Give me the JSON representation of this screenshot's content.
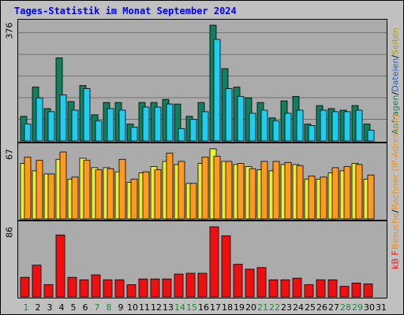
{
  "title": "Tages-Statistik im Monat September 2024",
  "colors": {
    "frame_bg": "#c0c0c0",
    "panel_bg": "#ababab",
    "gridline": "#6f6f6f",
    "title": "#0000ff",
    "weekend_day": "#1f8a3a",
    "weekday_day": "#000000",
    "hits": "#0f7f5f",
    "files": "#22ccee",
    "pages": "#eeee30",
    "visits": "#ff9a20",
    "kb": "#ee1010"
  },
  "right_labels": {
    "panel1": [
      {
        "text": "Anfragen",
        "color": "#0f7f5f"
      },
      {
        "text": "/",
        "color": "#000000"
      },
      {
        "text": "Dateien",
        "color": "#1a5fd6"
      },
      {
        "text": "/",
        "color": "#000000"
      },
      {
        "text": "Seiten",
        "color": "#b0a000"
      }
    ],
    "panel2": [
      {
        "text": "Besuche",
        "color": "#ff8c00"
      },
      {
        "text": "/",
        "color": "#000000"
      },
      {
        "text": "Rechner (IP-Adressen)",
        "color": "#ff8c00"
      }
    ],
    "panel3": [
      {
        "text": "kB F",
        "color": "#ee1010"
      }
    ]
  },
  "chart_data": [
    {
      "type": "bar",
      "panel": "hits-files",
      "y_max_label": "376",
      "ylim": [
        0,
        376
      ],
      "categories": [
        "1",
        "2",
        "3",
        "4",
        "5",
        "6",
        "7",
        "8",
        "9",
        "10",
        "11",
        "12",
        "13",
        "14",
        "15",
        "16",
        "17",
        "18",
        "19",
        "20",
        "21",
        "22",
        "23",
        "24",
        "25",
        "26",
        "27",
        "28",
        "29",
        "30",
        "31"
      ],
      "series": [
        {
          "name": "Anfragen",
          "values": [
            80,
            175,
            105,
            270,
            128,
            180,
            85,
            125,
            125,
            55,
            125,
            125,
            135,
            120,
            80,
            125,
            376,
            235,
            175,
            140,
            125,
            75,
            130,
            145,
            55,
            115,
            105,
            100,
            115,
            55,
            0
          ]
        },
        {
          "name": "Dateien",
          "values": [
            55,
            140,
            95,
            150,
            100,
            170,
            65,
            105,
            100,
            45,
            110,
            110,
            120,
            40,
            70,
            95,
            330,
            170,
            145,
            90,
            100,
            65,
            90,
            100,
            50,
            100,
            95,
            95,
            100,
            35,
            0
          ]
        }
      ]
    },
    {
      "type": "bar",
      "panel": "visits-sites",
      "y_max_label": "67",
      "ylim": [
        0,
        67
      ],
      "categories": [
        "1",
        "2",
        "3",
        "4",
        "5",
        "6",
        "7",
        "8",
        "9",
        "10",
        "11",
        "12",
        "13",
        "14",
        "15",
        "16",
        "17",
        "18",
        "19",
        "20",
        "21",
        "22",
        "23",
        "24",
        "25",
        "26",
        "27",
        "28",
        "29",
        "30",
        "31"
      ],
      "series": [
        {
          "name": "Rechner (IP-Adressen)",
          "values": [
            53,
            46,
            43,
            57,
            38,
            58,
            49,
            49,
            45,
            35,
            44,
            50,
            55,
            52,
            34,
            53,
            67,
            55,
            52,
            50,
            47,
            46,
            52,
            52,
            38,
            38,
            44,
            46,
            53,
            38,
            0
          ]
        },
        {
          "name": "Besuche",
          "values": [
            59,
            56,
            43,
            64,
            40,
            56,
            47,
            48,
            57,
            38,
            45,
            47,
            63,
            55,
            34,
            59,
            60,
            55,
            53,
            48,
            55,
            55,
            54,
            51,
            41,
            40,
            49,
            50,
            52,
            42,
            0
          ]
        }
      ]
    },
    {
      "type": "bar",
      "panel": "kb",
      "y_max_label": "86",
      "ylim": [
        0,
        86
      ],
      "categories": [
        "1",
        "2",
        "3",
        "4",
        "5",
        "6",
        "7",
        "8",
        "9",
        "10",
        "11",
        "12",
        "13",
        "14",
        "15",
        "16",
        "17",
        "18",
        "19",
        "20",
        "21",
        "22",
        "23",
        "24",
        "25",
        "26",
        "27",
        "28",
        "29",
        "30",
        "31"
      ],
      "series": [
        {
          "name": "kB F",
          "values": [
            24,
            39,
            15,
            76,
            24,
            21,
            27,
            21,
            21,
            15,
            22,
            22,
            22,
            28,
            29,
            29,
            86,
            75,
            40,
            34,
            36,
            21,
            21,
            23,
            15,
            21,
            21,
            13,
            17,
            16,
            0
          ]
        }
      ]
    }
  ],
  "x_axis": {
    "days": [
      "1",
      "2",
      "3",
      "4",
      "5",
      "6",
      "7",
      "8",
      "9",
      "10",
      "11",
      "12",
      "13",
      "14",
      "15",
      "16",
      "17",
      "18",
      "19",
      "20",
      "21",
      "22",
      "23",
      "24",
      "25",
      "26",
      "27",
      "28",
      "29",
      "30",
      "31"
    ],
    "weekend_days": [
      "1",
      "7",
      "8",
      "14",
      "15",
      "21",
      "22",
      "28",
      "29"
    ]
  }
}
